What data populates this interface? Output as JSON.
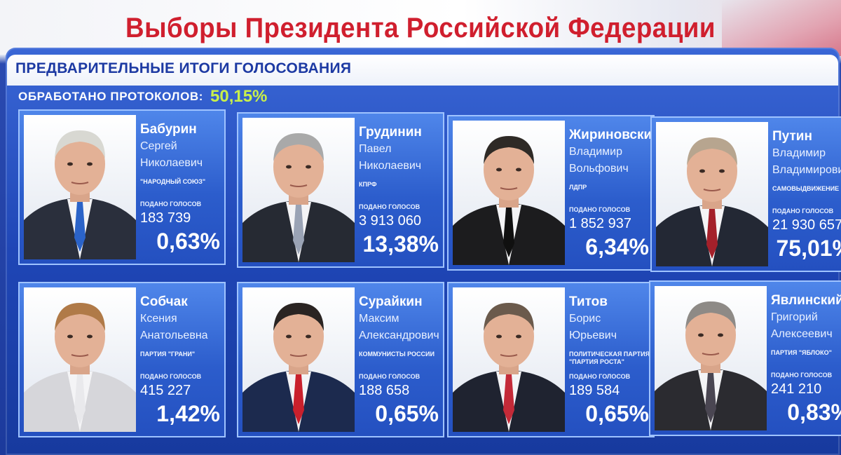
{
  "header": {
    "title": "Выборы Президента Российской Федерации",
    "subtitle": "ПРЕДВАРИТЕЛЬНЫЕ ИТОГИ ГОЛОСОВАНИЯ",
    "protocols_label": "ОБРАБОТАНО ПРОТОКОЛОВ:",
    "protocols_value": "50,15%"
  },
  "colors": {
    "title_red": "#d01f2e",
    "board_blue": "#1f46b6",
    "card_blue": "#2c5dcc",
    "accent_green": "#c9f04a"
  },
  "candidates": [
    {
      "surname": "Бабурин",
      "given": "Сергей",
      "patronymic": "Николаевич",
      "party": "\"НАРОДНЫЙ СОЮЗ\"",
      "votes_label": "ПОДАНО ГОЛОСОВ",
      "votes": "183 739",
      "percent": "0,63%",
      "tie": "#2b63c8",
      "suit": "#2a2f3c",
      "hair": "#d8d8d2"
    },
    {
      "surname": "Грудинин",
      "given": "Павел",
      "patronymic": "Николаевич",
      "party": "КПРФ",
      "votes_label": "ПОДАНО ГОЛОСОВ",
      "votes": "3 913 060",
      "percent": "13,38%",
      "tie": "#9aa3b5",
      "suit": "#262a33",
      "hair": "#a9a9a9"
    },
    {
      "surname": "Жириновский",
      "given": "Владимир",
      "patronymic": "Вольфович",
      "party": "ЛДПР",
      "votes_label": "ПОДАНО ГОЛОСОВ",
      "votes": "1 852 937",
      "percent": "6,34%",
      "tie": "#101010",
      "suit": "#1c1c1e",
      "hair": "#2e2a26"
    },
    {
      "surname": "Путин",
      "given": "Владимир",
      "patronymic": "Владимирович",
      "party": "САМОВЫДВИЖЕНИЕ",
      "votes_label": "ПОДАНО ГОЛОСОВ",
      "votes": "21 930 657",
      "percent": "75,01%",
      "tie": "#a4202a",
      "suit": "#232834",
      "hair": "#b7a58f"
    },
    {
      "surname": "Собчак",
      "given": "Ксения",
      "patronymic": "Анатольевна",
      "party": "ПАРТИЯ \"ГРАНИ\"",
      "votes_label": "ПОДАНО ГОЛОСОВ",
      "votes": "415 227",
      "percent": "1,42%",
      "tie": "#e9e9ec",
      "suit": "#d6d6da",
      "hair": "#b07a48"
    },
    {
      "surname": "Сурайкин",
      "given": "Максим",
      "patronymic": "Александрович",
      "party": "КОММУНИСТЫ РОССИИ",
      "votes_label": "ПОДАНО ГОЛОСОВ",
      "votes": "188 658",
      "percent": "0,65%",
      "tie": "#c9202c",
      "suit": "#1c2a4e",
      "hair": "#2a2422"
    },
    {
      "surname": "Титов",
      "given": "Борис",
      "patronymic": "Юрьевич",
      "party": "ПОЛИТИЧЕСКАЯ ПАРТИЯ \"ПАРТИЯ РОСТА\"",
      "votes_label": "ПОДАНО ГОЛОСОВ",
      "votes": "189 584",
      "percent": "0,65%",
      "tie": "#c42a38",
      "suit": "#1f2330",
      "hair": "#6b5a4c"
    },
    {
      "surname": "Явлинский",
      "given": "Григорий",
      "patronymic": "Алексеевич",
      "party": "ПАРТИЯ \"ЯБЛОКО\"",
      "votes_label": "ПОДАНО ГОЛОСОВ",
      "votes": "241 210",
      "percent": "0,83%",
      "tie": "#4a4652",
      "suit": "#2b2b30",
      "hair": "#8e8a86"
    }
  ]
}
